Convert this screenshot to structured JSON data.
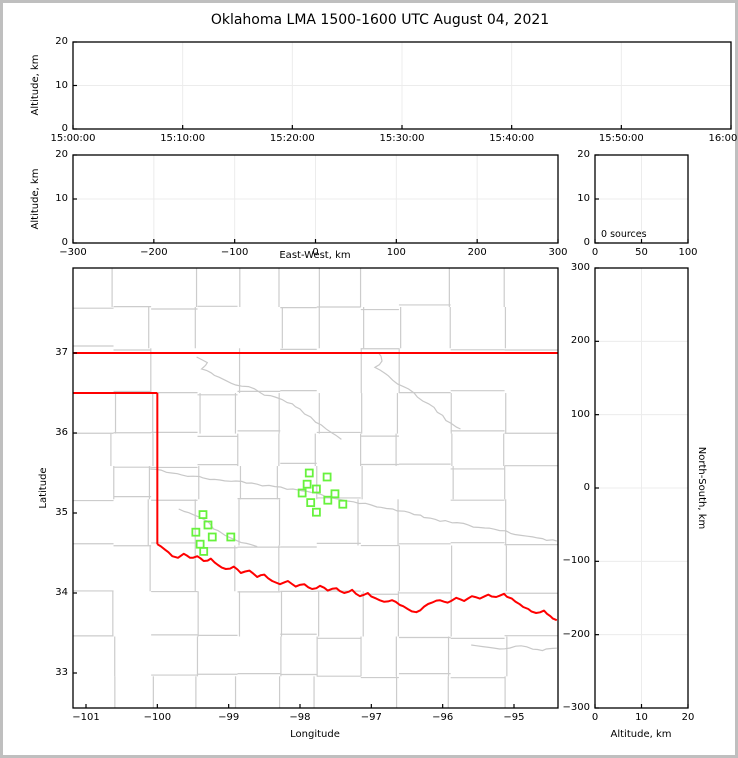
{
  "chart_data": {
    "type": "scatter",
    "title": "Oklahoma LMA 1500-1600 UTC August 04, 2021",
    "layout_hint": "multi-panel lightning mapping array display: time-height, EW-height, altitude histogram, plan-view map, NS-height",
    "panels": [
      {
        "id": "time-altitude",
        "xlabel": "",
        "ylabel": "Altitude, km",
        "xticks": [
          "15:00:00",
          "15:10:00",
          "15:20:00",
          "15:30:00",
          "15:40:00",
          "15:50:00",
          "16:00:00"
        ],
        "yticks": [
          "0",
          "10",
          "20"
        ],
        "ylim": [
          0,
          20
        ],
        "grid": true,
        "series": []
      },
      {
        "id": "eastwest-altitude",
        "xlabel": "East-West, km",
        "ylabel": "Altitude, km",
        "xticks": [
          "−300",
          "−200",
          "−100",
          "0",
          "100",
          "200",
          "300"
        ],
        "yticks": [
          "0",
          "10",
          "20"
        ],
        "xlim": [
          -300,
          300
        ],
        "ylim": [
          0,
          20
        ],
        "grid": true,
        "series": []
      },
      {
        "id": "altitude-histogram",
        "annotation": "0 sources",
        "xlabel": "",
        "ylabel": "",
        "xticks": [
          "0",
          "50",
          "100"
        ],
        "yticks": [
          "0",
          "10",
          "20"
        ],
        "xlim": [
          0,
          100
        ],
        "ylim": [
          0,
          20
        ],
        "grid": true,
        "series": []
      },
      {
        "id": "map",
        "xlabel": "Longitude",
        "ylabel": "Latitude",
        "xticks": [
          "−101",
          "−100",
          "−99",
          "−98",
          "−97",
          "−96",
          "−95"
        ],
        "xtick_values": [
          -101,
          -100,
          -99,
          -98,
          -97,
          -96,
          -95
        ],
        "yticks": [
          "33",
          "34",
          "35",
          "36",
          "37"
        ],
        "ytick_values": [
          33,
          34,
          35,
          36,
          37
        ],
        "xlim": [
          -101.18,
          -94.38
        ],
        "ylim": [
          32.56,
          38.06
        ],
        "grid": false
      },
      {
        "id": "northsouth-altitude",
        "xlabel": "Altitude, km",
        "ylabel": "North-South, km",
        "xticks": [
          "0",
          "10",
          "20"
        ],
        "yticks": [
          "−300",
          "−200",
          "−100",
          "0",
          "100",
          "200",
          "300"
        ],
        "xlim": [
          0,
          20
        ],
        "ylim": [
          -300,
          300
        ],
        "grid": true,
        "series": []
      }
    ],
    "map_layers": {
      "colors": {
        "state_border": "#ff0000",
        "county_line": "#cccccc",
        "river_line": "#c8c8c8",
        "source_marker": "#67f23d",
        "gridline": "#ececec",
        "frame": "#000000"
      },
      "state_border": {
        "north_lat37": [
          [
            -101.18,
            37.0
          ],
          [
            -94.38,
            37.0
          ]
        ],
        "panhandle_south_lat365": [
          [
            -101.18,
            36.5
          ],
          [
            -100.0,
            36.5
          ]
        ],
        "meridian_100w": [
          [
            -100.0,
            36.5
          ],
          [
            -100.0,
            34.61
          ]
        ],
        "red_river": [
          [
            -100.0,
            34.61
          ],
          [
            -99.89,
            34.54
          ],
          [
            -99.79,
            34.46
          ],
          [
            -99.71,
            34.44
          ],
          [
            -99.63,
            34.49
          ],
          [
            -99.54,
            34.44
          ],
          [
            -99.44,
            34.46
          ],
          [
            -99.35,
            34.4
          ],
          [
            -99.25,
            34.43
          ],
          [
            -99.15,
            34.35
          ],
          [
            -99.04,
            34.3
          ],
          [
            -98.93,
            34.33
          ],
          [
            -98.83,
            34.25
          ],
          [
            -98.71,
            34.28
          ],
          [
            -98.6,
            34.2
          ],
          [
            -98.5,
            34.23
          ],
          [
            -98.39,
            34.15
          ],
          [
            -98.28,
            34.11
          ],
          [
            -98.17,
            34.15
          ],
          [
            -98.06,
            34.08
          ],
          [
            -97.94,
            34.11
          ],
          [
            -97.83,
            34.05
          ],
          [
            -97.72,
            34.09
          ],
          [
            -97.61,
            34.03
          ],
          [
            -97.49,
            34.06
          ],
          [
            -97.38,
            34.0
          ],
          [
            -97.27,
            34.04
          ],
          [
            -97.16,
            33.96
          ],
          [
            -97.05,
            34.0
          ],
          [
            -96.93,
            33.93
          ],
          [
            -96.82,
            33.89
          ],
          [
            -96.71,
            33.91
          ],
          [
            -96.6,
            33.85
          ],
          [
            -96.49,
            33.8
          ],
          [
            -96.37,
            33.76
          ],
          [
            -96.26,
            33.83
          ],
          [
            -96.15,
            33.88
          ],
          [
            -96.04,
            33.91
          ],
          [
            -95.93,
            33.88
          ],
          [
            -95.81,
            33.94
          ],
          [
            -95.7,
            33.9
          ],
          [
            -95.59,
            33.96
          ],
          [
            -95.48,
            33.93
          ],
          [
            -95.36,
            33.98
          ],
          [
            -95.25,
            33.95
          ],
          [
            -95.14,
            33.99
          ],
          [
            -95.03,
            33.93
          ],
          [
            -94.92,
            33.86
          ],
          [
            -94.8,
            33.8
          ],
          [
            -94.69,
            33.75
          ],
          [
            -94.58,
            33.78
          ],
          [
            -94.49,
            33.71
          ],
          [
            -94.4,
            33.66
          ]
        ]
      },
      "rivers": {
        "cimarron": [
          [
            -99.45,
            36.95
          ],
          [
            -99.3,
            36.88
          ],
          [
            -99.38,
            36.8
          ],
          [
            -99.2,
            36.72
          ],
          [
            -99.05,
            36.66
          ],
          [
            -98.9,
            36.6
          ],
          [
            -98.72,
            36.58
          ],
          [
            -98.55,
            36.5
          ],
          [
            -98.35,
            36.45
          ],
          [
            -98.18,
            36.38
          ],
          [
            -98.0,
            36.3
          ],
          [
            -97.85,
            36.2
          ],
          [
            -97.7,
            36.1
          ],
          [
            -97.55,
            36.0
          ],
          [
            -97.42,
            35.92
          ]
        ],
        "arkansas": [
          [
            -96.9,
            37.0
          ],
          [
            -96.85,
            36.9
          ],
          [
            -96.95,
            36.82
          ],
          [
            -96.8,
            36.74
          ],
          [
            -96.7,
            36.66
          ],
          [
            -96.55,
            36.58
          ],
          [
            -96.4,
            36.5
          ],
          [
            -96.28,
            36.4
          ],
          [
            -96.12,
            36.32
          ],
          [
            -96.0,
            36.22
          ],
          [
            -95.88,
            36.12
          ],
          [
            -95.75,
            36.05
          ]
        ],
        "canadian": [
          [
            -100.1,
            35.55
          ],
          [
            -99.8,
            35.5
          ],
          [
            -99.5,
            35.46
          ],
          [
            -99.2,
            35.42
          ],
          [
            -98.9,
            35.4
          ],
          [
            -98.6,
            35.36
          ],
          [
            -98.35,
            35.33
          ],
          [
            -98.1,
            35.3
          ],
          [
            -97.9,
            35.27
          ],
          [
            -97.7,
            35.23
          ],
          [
            -97.5,
            35.18
          ],
          [
            -97.25,
            35.14
          ],
          [
            -97.0,
            35.1
          ],
          [
            -96.7,
            35.05
          ],
          [
            -96.4,
            34.98
          ],
          [
            -96.1,
            34.92
          ],
          [
            -95.8,
            34.88
          ],
          [
            -95.5,
            34.82
          ],
          [
            -95.2,
            34.78
          ],
          [
            -94.9,
            34.72
          ],
          [
            -94.6,
            34.68
          ],
          [
            -94.4,
            34.65
          ]
        ],
        "washita": [
          [
            -99.7,
            35.05
          ],
          [
            -99.5,
            34.98
          ],
          [
            -99.35,
            34.92
          ],
          [
            -99.25,
            34.85
          ],
          [
            -99.15,
            34.78
          ],
          [
            -99.05,
            34.72
          ],
          [
            -98.9,
            34.66
          ],
          [
            -98.75,
            34.62
          ],
          [
            -98.6,
            34.58
          ]
        ],
        "sulphur": [
          [
            -95.6,
            33.35
          ],
          [
            -95.2,
            33.3
          ],
          [
            -94.9,
            33.34
          ],
          [
            -94.6,
            33.28
          ],
          [
            -94.4,
            33.31
          ]
        ]
      },
      "sources_lonlat": [
        [
          -99.36,
          34.98
        ],
        [
          -99.29,
          34.85
        ],
        [
          -99.46,
          34.76
        ],
        [
          -99.23,
          34.7
        ],
        [
          -98.97,
          34.7
        ],
        [
          -99.4,
          34.61
        ],
        [
          -99.35,
          34.52
        ],
        [
          -97.87,
          35.5
        ],
        [
          -97.62,
          35.45
        ],
        [
          -97.9,
          35.36
        ],
        [
          -97.97,
          35.25
        ],
        [
          -97.77,
          35.3
        ],
        [
          -97.51,
          35.24
        ],
        [
          -97.85,
          35.13
        ],
        [
          -97.61,
          35.16
        ],
        [
          -97.4,
          35.11
        ],
        [
          -97.77,
          35.01
        ]
      ]
    }
  }
}
